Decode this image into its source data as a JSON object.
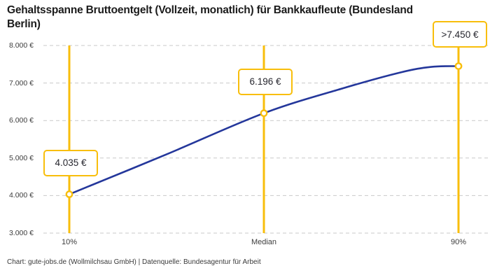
{
  "title": {
    "text": "Gehaltsspanne Bruttoentgelt (Vollzeit, monatlich) für Bankkaufleute (Bundesland Berlin)",
    "lines": [
      "Gehaltsspanne Bruttoentgelt (Vollzeit, monatlich) für Bankkaufleute (Bundesland",
      "Berlin)"
    ]
  },
  "footer": {
    "text": "Chart: gute-jobs.de (Wollmilchsau GmbH) | Datenquelle: Bundesagentur für Arbeit"
  },
  "colors": {
    "accent_yellow": "#F8BE0B",
    "curve_blue": "#24379B",
    "grid_gray": "#C9C9C9",
    "title_text": "#1B1B1B",
    "axis_text": "#3C3C3C",
    "callout_text": "#26262E",
    "footer_text": "#3A3A3A",
    "background": "#FFFFFF"
  },
  "chart_data": {
    "type": "line",
    "title": "Gehaltsspanne Bruttoentgelt (Vollzeit, monatlich) für Bankkaufleute (Bundesland Berlin)",
    "xlabel": "",
    "ylabel": "",
    "legend": "none",
    "grid": "horizontal-dashed",
    "ylim": [
      3000,
      8000
    ],
    "ytick_step": 1000,
    "y_tick_labels": [
      "3.000 €",
      "4.000 €",
      "5.000 €",
      "6.000 €",
      "7.000 €",
      "8.000 €"
    ],
    "x_tick_labels": [
      "10%",
      "Median",
      "90%"
    ],
    "points": [
      {
        "label": "10%",
        "value": 4035,
        "display": "4.035 €"
      },
      {
        "label": "Median",
        "value": 6196,
        "display": "6.196 €"
      },
      {
        "label": "90%",
        "value": 7450,
        "display": ">7.450 €"
      }
    ],
    "curve": [
      [
        0.0,
        4035
      ],
      [
        0.25,
        5100
      ],
      [
        0.5,
        6196
      ],
      [
        0.7,
        6850
      ],
      [
        0.85,
        7280
      ],
      [
        0.93,
        7430
      ],
      [
        1.0,
        7450
      ]
    ]
  }
}
